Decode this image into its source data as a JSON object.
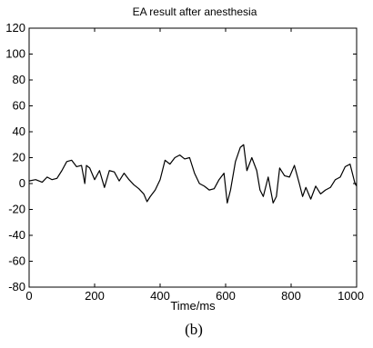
{
  "chart_data": {
    "type": "line",
    "title": "EA result after anesthesia",
    "xlabel": "Time/ms",
    "ylabel": "",
    "xlim": [
      0,
      1000
    ],
    "ylim": [
      -80,
      120
    ],
    "grid": false,
    "x_ticks": [
      0,
      200,
      400,
      600,
      800,
      1000
    ],
    "x_tick_labels": [
      "0",
      "200",
      "400",
      "600",
      "800",
      "1000"
    ],
    "y_ticks": [
      120,
      100,
      80,
      60,
      40,
      20,
      0,
      -20,
      -40,
      -60,
      -80
    ],
    "y_tick_labels": [
      "120",
      "100",
      "80",
      "60",
      "40",
      "20",
      "0",
      "-20",
      "-40",
      "-60",
      "-80"
    ],
    "series": [
      {
        "color": "#000000",
        "x": [
          0,
          20,
          40,
          55,
          70,
          85,
          100,
          115,
          130,
          145,
          160,
          170,
          175,
          185,
          200,
          215,
          230,
          245,
          260,
          275,
          290,
          305,
          320,
          335,
          350,
          360,
          370,
          385,
          400,
          415,
          430,
          445,
          460,
          475,
          490,
          505,
          520,
          535,
          550,
          565,
          580,
          595,
          605,
          615,
          630,
          645,
          655,
          665,
          680,
          695,
          705,
          715,
          730,
          745,
          755,
          765,
          780,
          795,
          810,
          825,
          835,
          845,
          860,
          875,
          890,
          905,
          920,
          935,
          950,
          965,
          980,
          995,
          1000
        ],
        "y": [
          2,
          3,
          1,
          5,
          3,
          4,
          10,
          17,
          18,
          13,
          14,
          0,
          14,
          12,
          3,
          10,
          -3,
          10,
          9,
          2,
          8,
          3,
          -1,
          -4,
          -8,
          -14,
          -10,
          -5,
          3,
          18,
          15,
          20,
          22,
          19,
          20,
          8,
          0,
          -2,
          -5,
          -4,
          3,
          8,
          -15,
          -5,
          17,
          28,
          30,
          10,
          20,
          10,
          -5,
          -10,
          5,
          -15,
          -10,
          12,
          6,
          5,
          14,
          0,
          -10,
          -3,
          -12,
          -2,
          -8,
          -5,
          -3,
          3,
          5,
          13,
          15,
          0,
          -2
        ]
      }
    ]
  },
  "caption": "(b)"
}
